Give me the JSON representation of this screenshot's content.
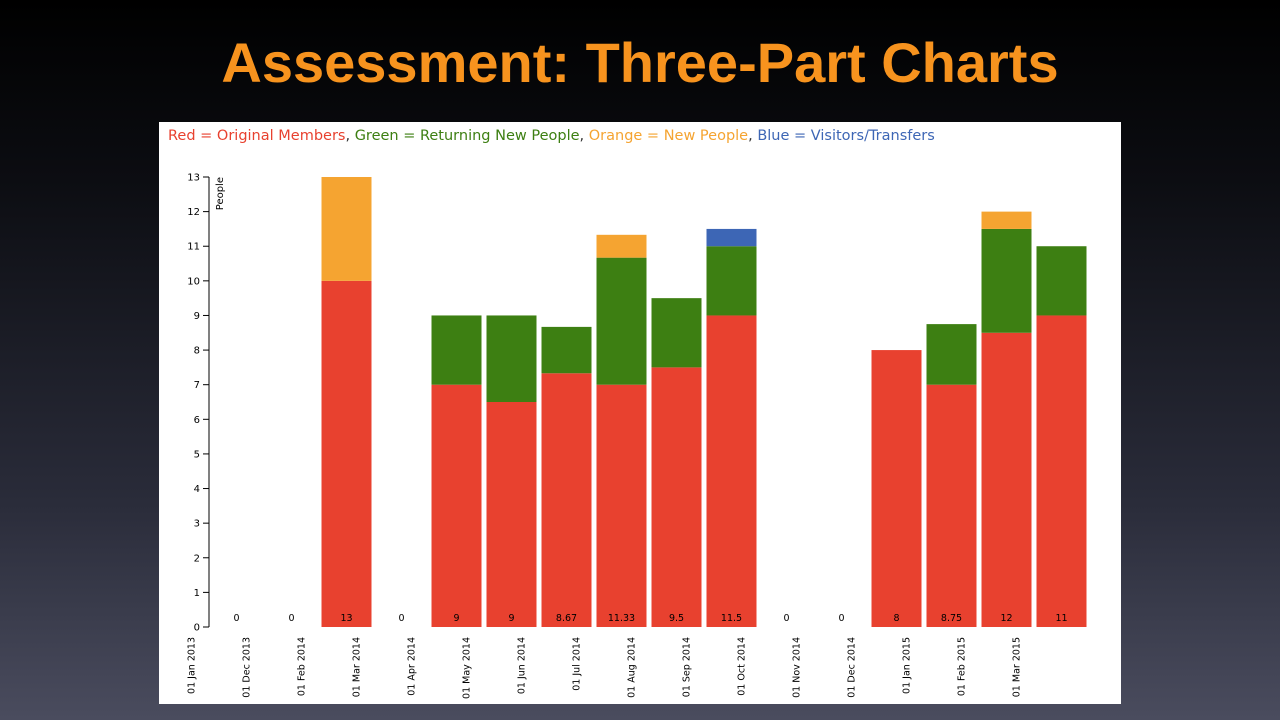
{
  "slide": {
    "title": "Assessment: Three-Part Charts"
  },
  "legend": {
    "items": [
      {
        "text": "Red = Original Members",
        "color": "#e8412f"
      },
      {
        "text": "Green = Returning New People",
        "color": "#3d7f12"
      },
      {
        "text": "Orange = New People",
        "color": "#f5a431"
      },
      {
        "text": "Blue = Visitors/Transfers",
        "color": "#3d66b5"
      }
    ],
    "separator": ", "
  },
  "chart_data": {
    "type": "bar",
    "stacked": true,
    "ylabel": "People",
    "xlabel": "",
    "ylim": [
      0,
      13
    ],
    "yticks": [
      0,
      1,
      2,
      3,
      4,
      5,
      6,
      7,
      8,
      9,
      10,
      11,
      12,
      13
    ],
    "grid": false,
    "categories": [
      "01 Jan 2013",
      "01 Dec 2013",
      "01 Feb 2014",
      "01 Mar 2014",
      "01 Apr 2014",
      "01 May 2014",
      "01 Jun 2014",
      "01 Jul 2014",
      "01 Aug 2014",
      "01 Sep 2014",
      "01 Oct 2014",
      "01 Nov 2014",
      "01 Dec 2014",
      "01 Jan 2015",
      "01 Feb 2015",
      "01 Mar 2015"
    ],
    "totals": [
      "0",
      "0",
      "13",
      "0",
      "9",
      "9",
      "8.67",
      "11.33",
      "9.5",
      "11.5",
      "0",
      "0",
      "8",
      "8.75",
      "12",
      "11"
    ],
    "series": [
      {
        "key": "original",
        "color": "#e8412f",
        "values": [
          0,
          0,
          10,
          0,
          7,
          6.5,
          7.33,
          7,
          7.5,
          9,
          0,
          0,
          8,
          7,
          8.5,
          9
        ]
      },
      {
        "key": "returning",
        "color": "#3d7f12",
        "values": [
          0,
          0,
          0,
          0,
          2,
          2.5,
          1.34,
          3.67,
          2,
          2,
          0,
          0,
          0,
          1.75,
          3,
          2
        ]
      },
      {
        "key": "new",
        "color": "#f5a431",
        "values": [
          0,
          0,
          3,
          0,
          0,
          0,
          0,
          0.66,
          0,
          0,
          0,
          0,
          0,
          0,
          0.5,
          0
        ]
      },
      {
        "key": "visitors",
        "color": "#3d66b5",
        "values": [
          0,
          0,
          0,
          0,
          0,
          0,
          0,
          0,
          0,
          0.5,
          0,
          0,
          0,
          0,
          0,
          0
        ]
      }
    ]
  }
}
